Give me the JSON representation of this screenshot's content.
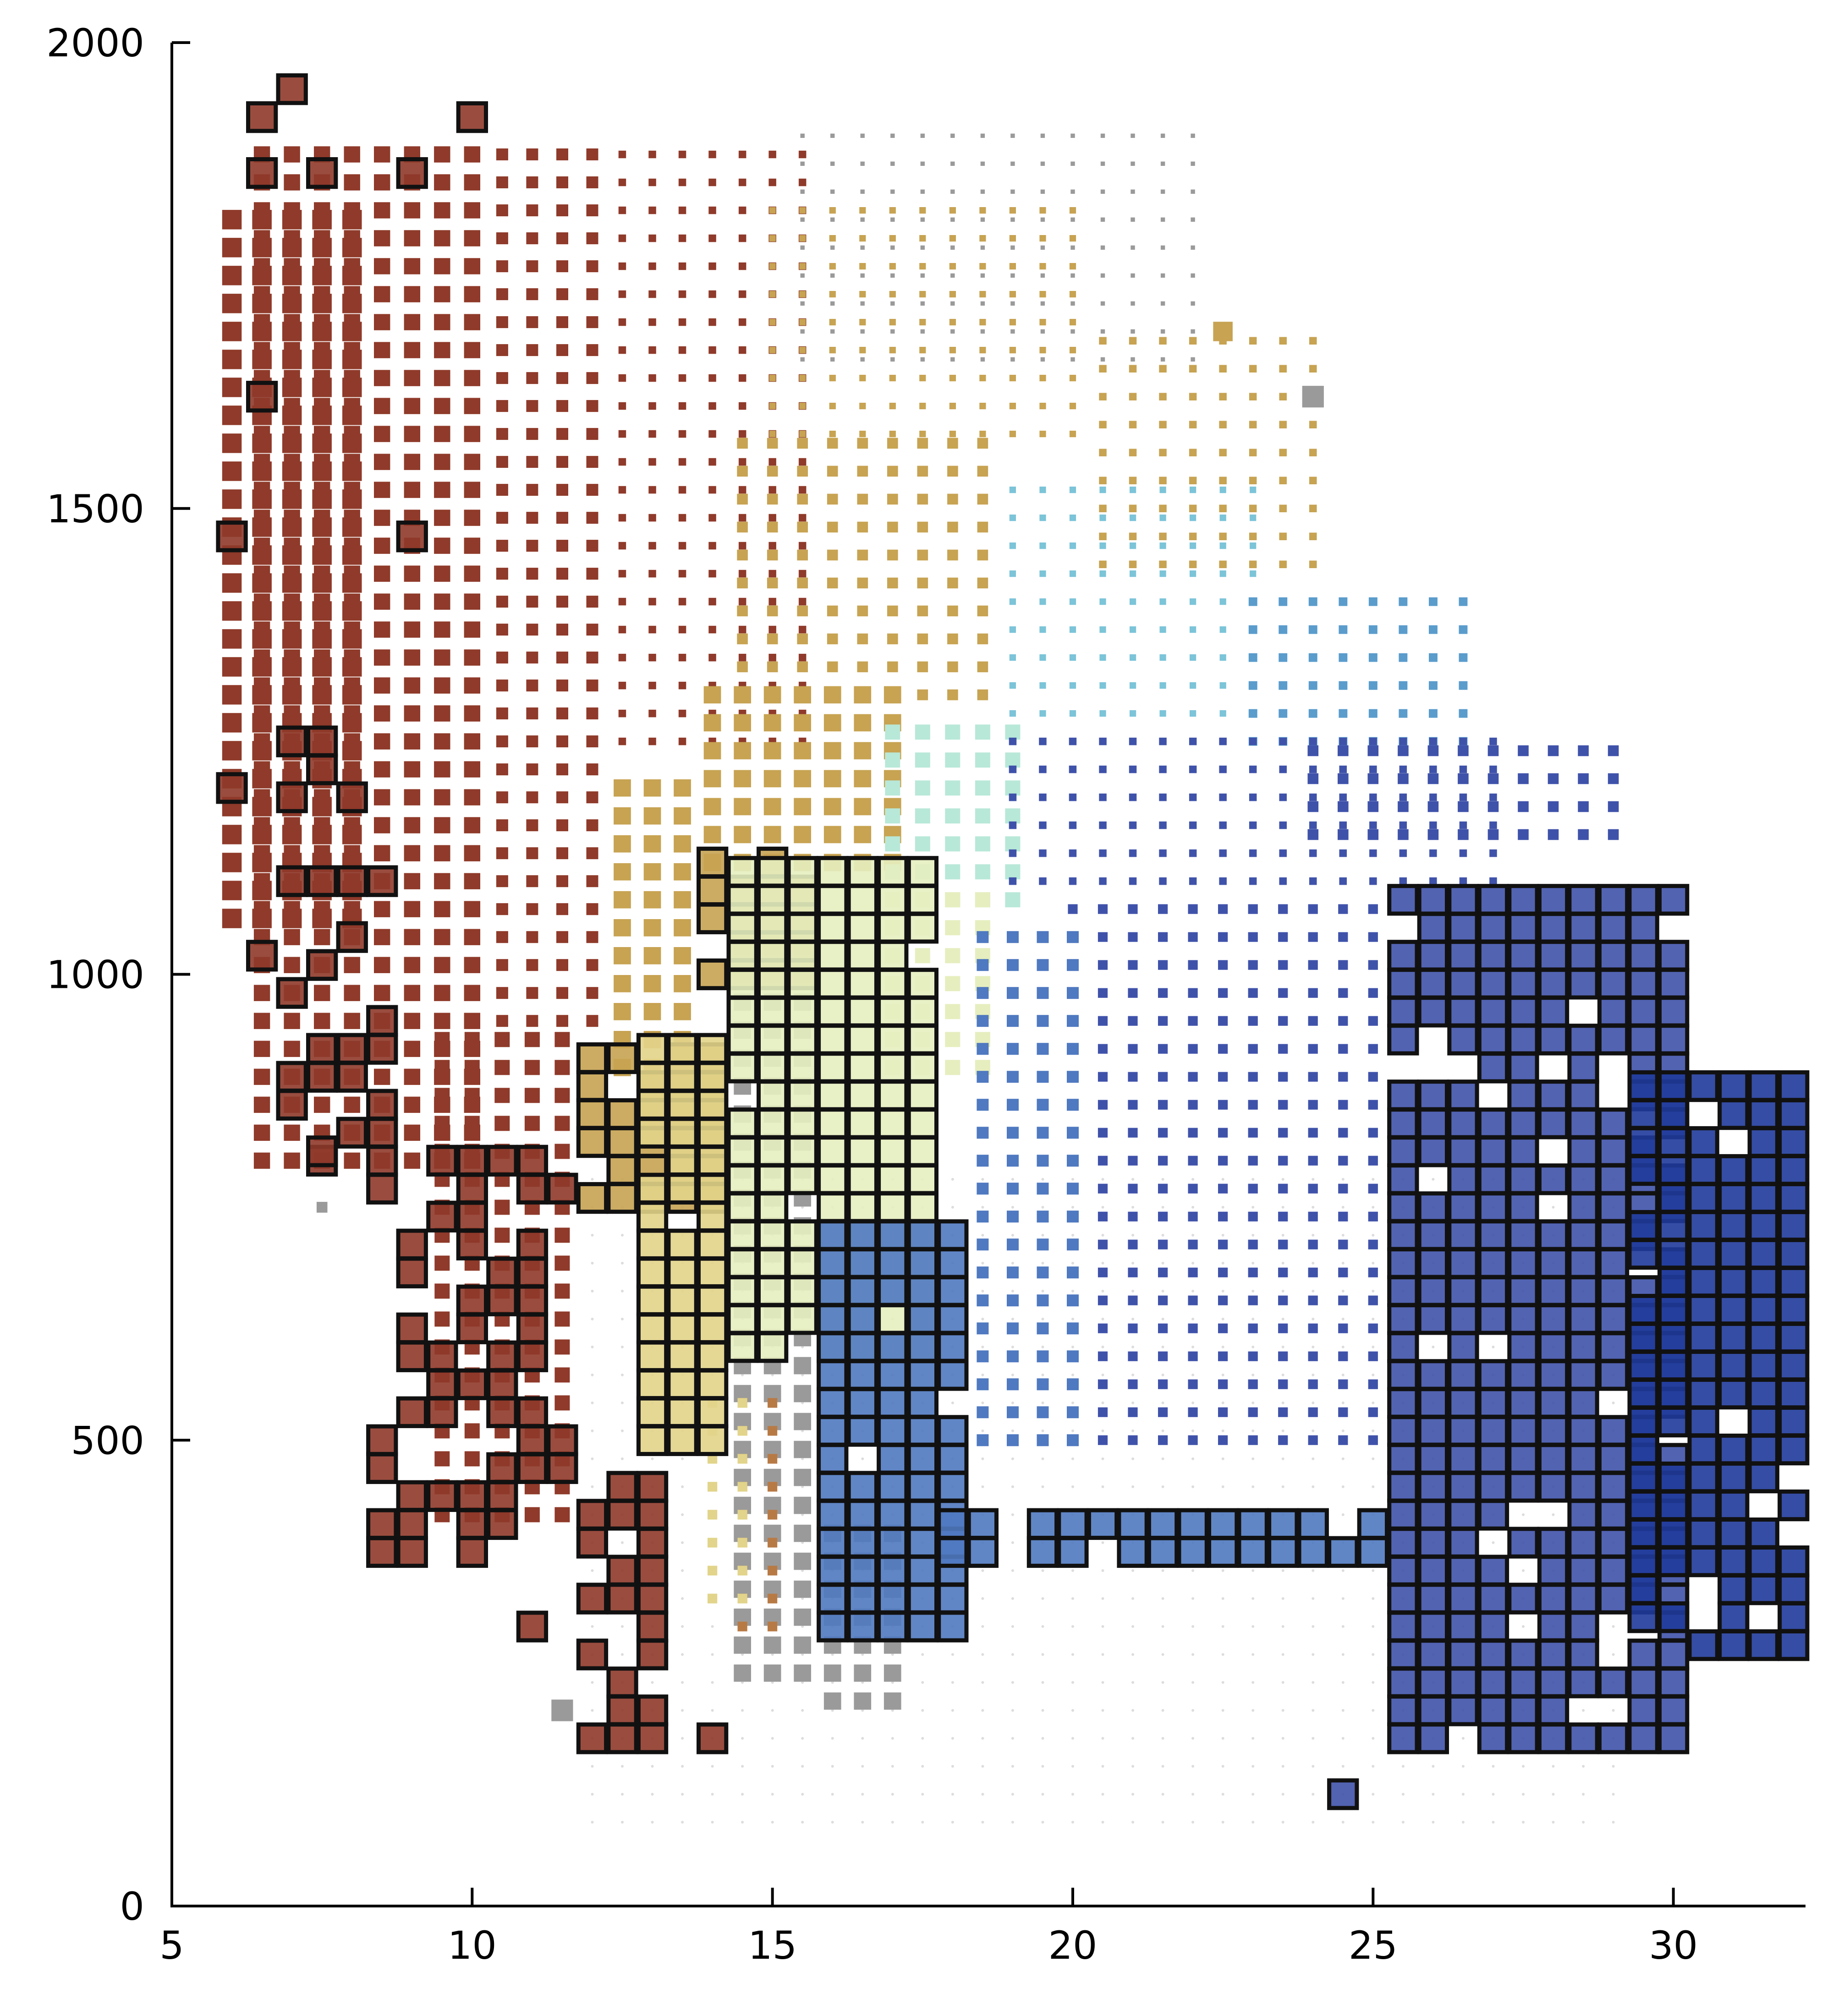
{
  "chart_data": {
    "type": "scatter",
    "title": "",
    "xlabel": "",
    "ylabel": "",
    "xlim": [
      5,
      32.2
    ],
    "ylim": [
      0,
      2000
    ],
    "grid": false,
    "legend": "none",
    "marker": "square",
    "x_ticks": [
      {
        "value": 5,
        "label": "5"
      },
      {
        "value": 10,
        "label": "10"
      },
      {
        "value": 15,
        "label": "15"
      },
      {
        "value": 20,
        "label": "20"
      },
      {
        "value": 25,
        "label": "25"
      },
      {
        "value": 30,
        "label": "30"
      }
    ],
    "y_ticks": [
      {
        "value": 0,
        "label": "0"
      },
      {
        "value": 500,
        "label": "500"
      },
      {
        "value": 1000,
        "label": "1000"
      },
      {
        "value": 1500,
        "label": "1500"
      },
      {
        "value": 2000,
        "label": "2000"
      }
    ],
    "colors": {
      "brown": "#8f3a2a",
      "tan": "#c7a352",
      "gray": "#9a9a9a",
      "lightblue": "#7cc4d8",
      "midblue": "#5a9ccc",
      "mint": "#b8e8d8",
      "paleyellow": "#e6eebf",
      "yellow": "#e2d48a",
      "orange": "#b87a45",
      "blue": "#4f79c0",
      "navy": "#3f52aa",
      "darknavy": "#1f3a9a",
      "outline": "#111111"
    },
    "grid_regions": [
      {
        "color": "brown",
        "x": [
          6.0,
          8.0
        ],
        "y": [
          1060,
          1820
        ],
        "size": 0.9
      },
      {
        "color": "brown",
        "x": [
          6.5,
          10.0
        ],
        "y": [
          800,
          1900
        ],
        "size": 0.75
      },
      {
        "color": "brown",
        "x": [
          10.5,
          12.0
        ],
        "y": [
          950,
          1900
        ],
        "size": 0.55
      },
      {
        "color": "brown",
        "x": [
          12.5,
          15.5
        ],
        "y": [
          1250,
          1900
        ],
        "size": 0.35
      },
      {
        "color": "brown",
        "x": [
          9.5,
          11.5
        ],
        "y": [
          420,
          950
        ],
        "size": 0.7
      },
      {
        "color": "tan",
        "x": [
          12.5,
          13.5
        ],
        "y": [
          900,
          1200
        ],
        "size": 0.8
      },
      {
        "color": "tan",
        "x": [
          14.0,
          17.0
        ],
        "y": [
          1120,
          1300
        ],
        "size": 0.8
      },
      {
        "color": "tan",
        "x": [
          14.5,
          18.5
        ],
        "y": [
          1300,
          1580
        ],
        "size": 0.5
      },
      {
        "color": "tan",
        "x": [
          15.0,
          20.0
        ],
        "y": [
          1580,
          1820
        ],
        "size": 0.3
      },
      {
        "color": "gray",
        "x": [
          15.5,
          22.0
        ],
        "y": [
          1660,
          1900
        ],
        "size": 0.2
      },
      {
        "color": "tan",
        "x": [
          20.5,
          24.0
        ],
        "y": [
          1440,
          1700
        ],
        "size": 0.35
      },
      {
        "color": "lightblue",
        "x": [
          19.0,
          23.0
        ],
        "y": [
          1250,
          1520
        ],
        "size": 0.3
      },
      {
        "color": "midblue",
        "x": [
          23.0,
          26.5
        ],
        "y": [
          1250,
          1420
        ],
        "size": 0.4
      },
      {
        "color": "mint",
        "x": [
          17.0,
          19.0
        ],
        "y": [
          1080,
          1260
        ],
        "size": 0.7
      },
      {
        "color": "paleyellow",
        "x": [
          17.0,
          18.5
        ],
        "y": [
          900,
          1080
        ],
        "size": 0.7
      },
      {
        "color": "navy",
        "x": [
          19.0,
          27.0
        ],
        "y": [
          1100,
          1260
        ],
        "size": 0.35
      },
      {
        "color": "navy",
        "x": [
          20.0,
          25.0
        ],
        "y": [
          500,
          1080
        ],
        "size": 0.45
      },
      {
        "color": "blue",
        "x": [
          18.5,
          20.0
        ],
        "y": [
          500,
          1060
        ],
        "size": 0.55
      },
      {
        "color": "navy",
        "x": [
          24.0,
          29.0
        ],
        "y": [
          1150,
          1240
        ],
        "size": 0.5
      },
      {
        "color": "gray",
        "x": [
          14.5,
          15.5
        ],
        "y": [
          250,
          1030
        ],
        "size": 0.8
      },
      {
        "color": "orange",
        "x": [
          14.5,
          15.0
        ],
        "y": [
          300,
          560
        ],
        "size": 0.45
      },
      {
        "color": "yellow",
        "x": [
          14.0,
          14.5
        ],
        "y": [
          330,
          560
        ],
        "size": 0.45
      },
      {
        "color": "gray",
        "x": [
          16.0,
          17.0
        ],
        "y": [
          220,
          420
        ],
        "size": 0.8
      }
    ],
    "outlined_regions": [
      {
        "color": "brown",
        "x": [
          7.0,
          8.5
        ],
        "y": [
          800,
          1300
        ],
        "density": 0.35
      },
      {
        "color": "brown",
        "x": [
          8.5,
          11.5
        ],
        "y": [
          380,
          820
        ],
        "density": 0.45
      },
      {
        "color": "brown",
        "x": [
          12.0,
          13.0
        ],
        "y": [
          180,
          460
        ],
        "density": 0.75
      },
      {
        "color": "tan",
        "x": [
          12.0,
          14.0
        ],
        "y": [
          760,
          920
        ],
        "density": 0.85
      },
      {
        "color": "tan",
        "x": [
          14.0,
          15.5
        ],
        "y": [
          1000,
          1140
        ],
        "density": 0.75
      },
      {
        "color": "yellow",
        "x": [
          13.0,
          14.0
        ],
        "y": [
          500,
          940
        ],
        "density": 0.95
      },
      {
        "color": "paleyellow",
        "x": [
          14.5,
          17.5
        ],
        "y": [
          600,
          1120
        ],
        "density": 0.95
      },
      {
        "color": "blue",
        "x": [
          16.0,
          18.0
        ],
        "y": [
          300,
          720
        ],
        "density": 0.95
      },
      {
        "color": "blue",
        "x": [
          18.0,
          25.0
        ],
        "y": [
          380,
          420
        ],
        "density": 0.9
      },
      {
        "color": "navy",
        "x": [
          25.5,
          30.0
        ],
        "y": [
          180,
          1090
        ],
        "density": 0.9
      },
      {
        "color": "darknavy",
        "x": [
          29.5,
          32.0
        ],
        "y": [
          280,
          880
        ],
        "density": 0.9
      }
    ],
    "points": [
      {
        "x": 7.0,
        "y": 1950,
        "color": "brown",
        "size": 1.0,
        "outlined": true
      },
      {
        "x": 6.5,
        "y": 1920,
        "color": "brown",
        "size": 1.0,
        "outlined": true
      },
      {
        "x": 10.0,
        "y": 1920,
        "color": "brown",
        "size": 1.0,
        "outlined": true
      },
      {
        "x": 6.5,
        "y": 1860,
        "color": "brown",
        "size": 1.0,
        "outlined": true
      },
      {
        "x": 7.5,
        "y": 1860,
        "color": "brown",
        "size": 1.0,
        "outlined": true
      },
      {
        "x": 9.0,
        "y": 1860,
        "color": "brown",
        "size": 1.0,
        "outlined": true
      },
      {
        "x": 6.5,
        "y": 1620,
        "color": "brown",
        "size": 1.0,
        "outlined": true
      },
      {
        "x": 6.0,
        "y": 1470,
        "color": "brown",
        "size": 1.0,
        "outlined": true
      },
      {
        "x": 9.0,
        "y": 1470,
        "color": "brown",
        "size": 1.0,
        "outlined": true
      },
      {
        "x": 6.0,
        "y": 1200,
        "color": "brown",
        "size": 1.0,
        "outlined": true
      },
      {
        "x": 6.5,
        "y": 1020,
        "color": "brown",
        "size": 1.0,
        "outlined": true
      },
      {
        "x": 7.5,
        "y": 810,
        "color": "brown",
        "size": 1.0,
        "outlined": true
      },
      {
        "x": 11.0,
        "y": 300,
        "color": "brown",
        "size": 1.0,
        "outlined": true
      },
      {
        "x": 14.0,
        "y": 180,
        "color": "brown",
        "size": 1.0,
        "outlined": true
      },
      {
        "x": 7.5,
        "y": 750,
        "color": "gray",
        "size": 0.5,
        "outlined": false
      },
      {
        "x": 11.5,
        "y": 210,
        "color": "gray",
        "size": 1.0,
        "outlined": false
      },
      {
        "x": 24.5,
        "y": 120,
        "color": "navy",
        "size": 1.0,
        "outlined": true
      },
      {
        "x": 24.0,
        "y": 1620,
        "color": "gray",
        "size": 1.0,
        "outlined": false
      },
      {
        "x": 22.5,
        "y": 1690,
        "color": "tan",
        "size": 0.9,
        "outlined": false
      }
    ]
  }
}
